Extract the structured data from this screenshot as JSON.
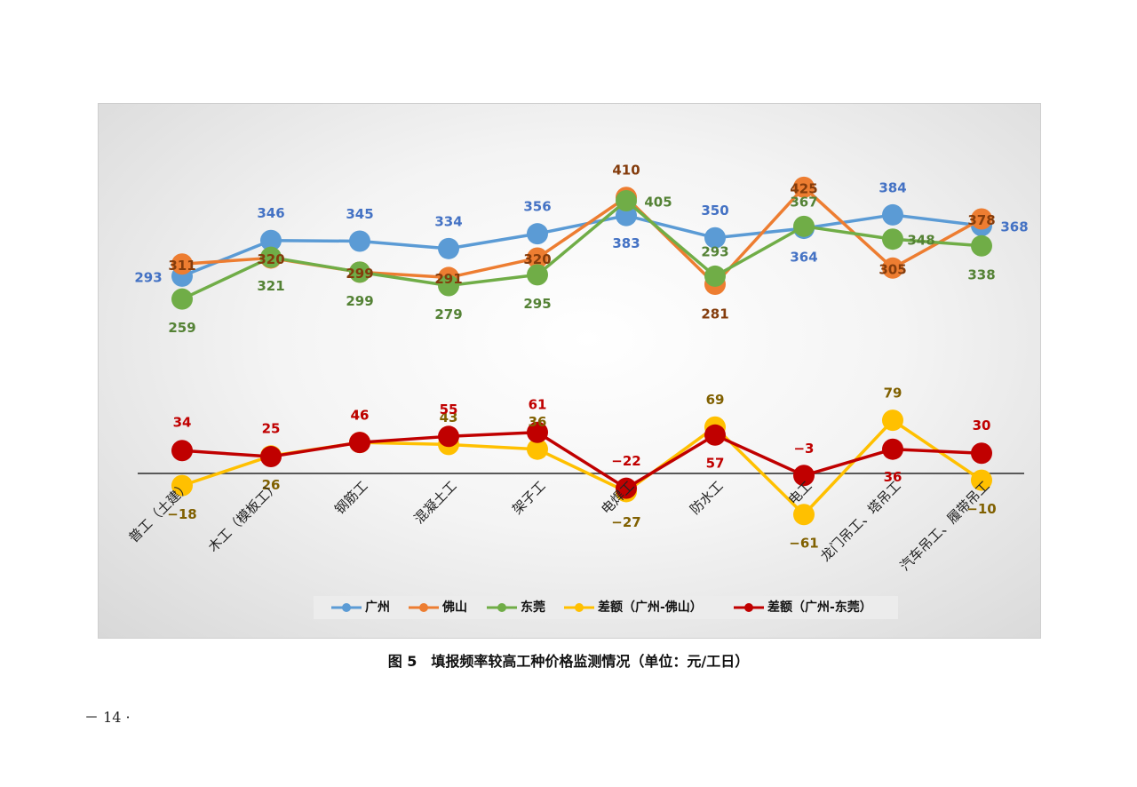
{
  "caption": "图 5　填报频率较高工种价格监测情况（单位：元/工日）",
  "page_number": "－ 14 ·",
  "chart_data": {
    "type": "line",
    "title": "",
    "xlabel": "",
    "ylabel": "",
    "categories": [
      "普工（土建）",
      "木工（模板工）",
      "钢筋工",
      "混凝土工",
      "架子工",
      "电焊工",
      "防水工",
      "电工",
      "龙门吊工、塔吊工",
      "汽车吊工、履带吊工"
    ],
    "ylim": [
      -80,
      440
    ],
    "baseline": 0,
    "grid": false,
    "legend": "bottom",
    "series": [
      {
        "name": "广州",
        "color": "#5b9bd5",
        "values": [
          293,
          346,
          345,
          334,
          356,
          383,
          350,
          364,
          384,
          368
        ]
      },
      {
        "name": "佛山",
        "color": "#ed7d31",
        "values": [
          311,
          320,
          299,
          291,
          320,
          410,
          281,
          425,
          305,
          378
        ]
      },
      {
        "name": "东莞",
        "color": "#70ad47",
        "values": [
          259,
          321,
          299,
          279,
          295,
          405,
          293,
          367,
          348,
          338
        ]
      },
      {
        "name": "差额（广州-佛山）",
        "color": "#ffc000",
        "values": [
          -18,
          26,
          46,
          43,
          36,
          -27,
          69,
          -61,
          79,
          -10
        ]
      },
      {
        "name": "差额（广州-东莞）",
        "color": "#c00000",
        "values": [
          34,
          25,
          46,
          55,
          61,
          -22,
          57,
          -3,
          36,
          30
        ]
      }
    ],
    "label_colors": {
      "广州": "#4472c4",
      "佛山": "#843c0c",
      "东莞": "#548235",
      "差额（广州-佛山）": "#806000",
      "差额（广州-东莞）": "#c00000"
    }
  }
}
